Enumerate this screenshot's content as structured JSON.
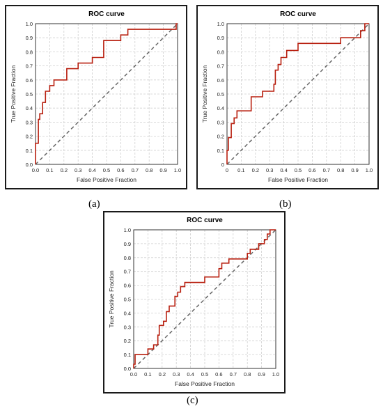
{
  "colors": {
    "curve": "#b81f0f",
    "diagonal": "#666666",
    "grid": "#cfcfcf",
    "axis": "#333333",
    "border": "#1a1a1a"
  },
  "panels": [
    {
      "caption": "(a)"
    },
    {
      "caption": "(b)"
    },
    {
      "caption": "(c)"
    }
  ],
  "chart_data": [
    {
      "type": "line",
      "title": "ROC curve",
      "xlabel": "False Positive Fraction",
      "ylabel": "True Positive Fraction",
      "xlim": [
        0,
        1
      ],
      "ylim": [
        0,
        1
      ],
      "ticks": [
        "0.0",
        "0.1",
        "0.2",
        "0.3",
        "0.4",
        "0.5",
        "0.6",
        "0.7",
        "0.8",
        "0.9",
        "1.0"
      ],
      "grid": true,
      "series": [
        {
          "x": [
            0,
            0,
            0.02,
            0.02,
            0.03,
            0.03,
            0.05,
            0.05,
            0.07,
            0.07,
            0.1,
            0.1,
            0.13,
            0.13,
            0.22,
            0.22,
            0.3,
            0.3,
            0.4,
            0.4,
            0.48,
            0.48,
            0.6,
            0.6,
            0.65,
            0.65,
            0.99,
            0.99,
            1
          ],
          "y": [
            0,
            0.15,
            0.15,
            0.32,
            0.32,
            0.36,
            0.36,
            0.44,
            0.44,
            0.52,
            0.52,
            0.56,
            0.56,
            0.6,
            0.6,
            0.68,
            0.68,
            0.72,
            0.72,
            0.76,
            0.76,
            0.88,
            0.88,
            0.92,
            0.92,
            0.96,
            0.96,
            1,
            1
          ]
        },
        {
          "x": [
            0,
            1
          ],
          "y": [
            0,
            1
          ]
        }
      ]
    },
    {
      "type": "line",
      "title": "ROC curve",
      "xlabel": "False Positive Fraction",
      "ylabel": "True Positive Fraction",
      "xlim": [
        0,
        1
      ],
      "ylim": [
        0,
        1
      ],
      "ticks": [
        "0",
        "0.1",
        "0.2",
        "0.3",
        "0.4",
        "0.5",
        "0.6",
        "0.7",
        "0.8",
        "0.9",
        "1.0"
      ],
      "grid": true,
      "series": [
        {
          "x": [
            0,
            0,
            0.01,
            0.01,
            0.03,
            0.03,
            0.05,
            0.05,
            0.07,
            0.07,
            0.1,
            0.1,
            0.17,
            0.17,
            0.25,
            0.25,
            0.33,
            0.33,
            0.34,
            0.34,
            0.36,
            0.36,
            0.38,
            0.38,
            0.42,
            0.42,
            0.5,
            0.5,
            0.8,
            0.8,
            0.94,
            0.94,
            0.97,
            0.97,
            1
          ],
          "y": [
            0,
            0.1,
            0.1,
            0.19,
            0.19,
            0.29,
            0.29,
            0.33,
            0.33,
            0.38,
            0.38,
            0.38,
            0.38,
            0.48,
            0.48,
            0.52,
            0.52,
            0.57,
            0.57,
            0.67,
            0.67,
            0.71,
            0.71,
            0.76,
            0.76,
            0.81,
            0.81,
            0.86,
            0.86,
            0.9,
            0.9,
            0.95,
            0.95,
            1,
            1
          ]
        },
        {
          "x": [
            0,
            1
          ],
          "y": [
            0,
            1
          ]
        }
      ]
    },
    {
      "type": "line",
      "title": "ROC curve",
      "xlabel": "False Positive Fraction",
      "ylabel": "True Positive Fraction",
      "xlim": [
        0,
        1
      ],
      "ylim": [
        0,
        1
      ],
      "ticks": [
        "0.0",
        "0.1",
        "0.2",
        "0.3",
        "0.4",
        "0.5",
        "0.6",
        "0.7",
        "0.8",
        "0.9",
        "1.0"
      ],
      "grid": true,
      "series": [
        {
          "x": [
            0,
            0,
            0.01,
            0.01,
            0.1,
            0.1,
            0.14,
            0.14,
            0.17,
            0.17,
            0.18,
            0.18,
            0.21,
            0.21,
            0.23,
            0.23,
            0.25,
            0.25,
            0.29,
            0.29,
            0.31,
            0.31,
            0.33,
            0.33,
            0.36,
            0.36,
            0.5,
            0.5,
            0.6,
            0.6,
            0.62,
            0.62,
            0.67,
            0.67,
            0.8,
            0.8,
            0.82,
            0.82,
            0.88,
            0.88,
            0.92,
            0.92,
            0.94,
            0.94,
            0.96,
            0.96,
            1
          ],
          "y": [
            0,
            0.03,
            0.03,
            0.1,
            0.1,
            0.14,
            0.14,
            0.17,
            0.17,
            0.24,
            0.24,
            0.31,
            0.31,
            0.34,
            0.34,
            0.41,
            0.41,
            0.45,
            0.45,
            0.52,
            0.52,
            0.55,
            0.55,
            0.59,
            0.59,
            0.62,
            0.62,
            0.66,
            0.66,
            0.72,
            0.72,
            0.76,
            0.76,
            0.79,
            0.79,
            0.83,
            0.83,
            0.86,
            0.86,
            0.9,
            0.9,
            0.93,
            0.93,
            0.97,
            0.97,
            1,
            1
          ]
        },
        {
          "x": [
            0,
            1
          ],
          "y": [
            0,
            1
          ]
        }
      ]
    }
  ]
}
